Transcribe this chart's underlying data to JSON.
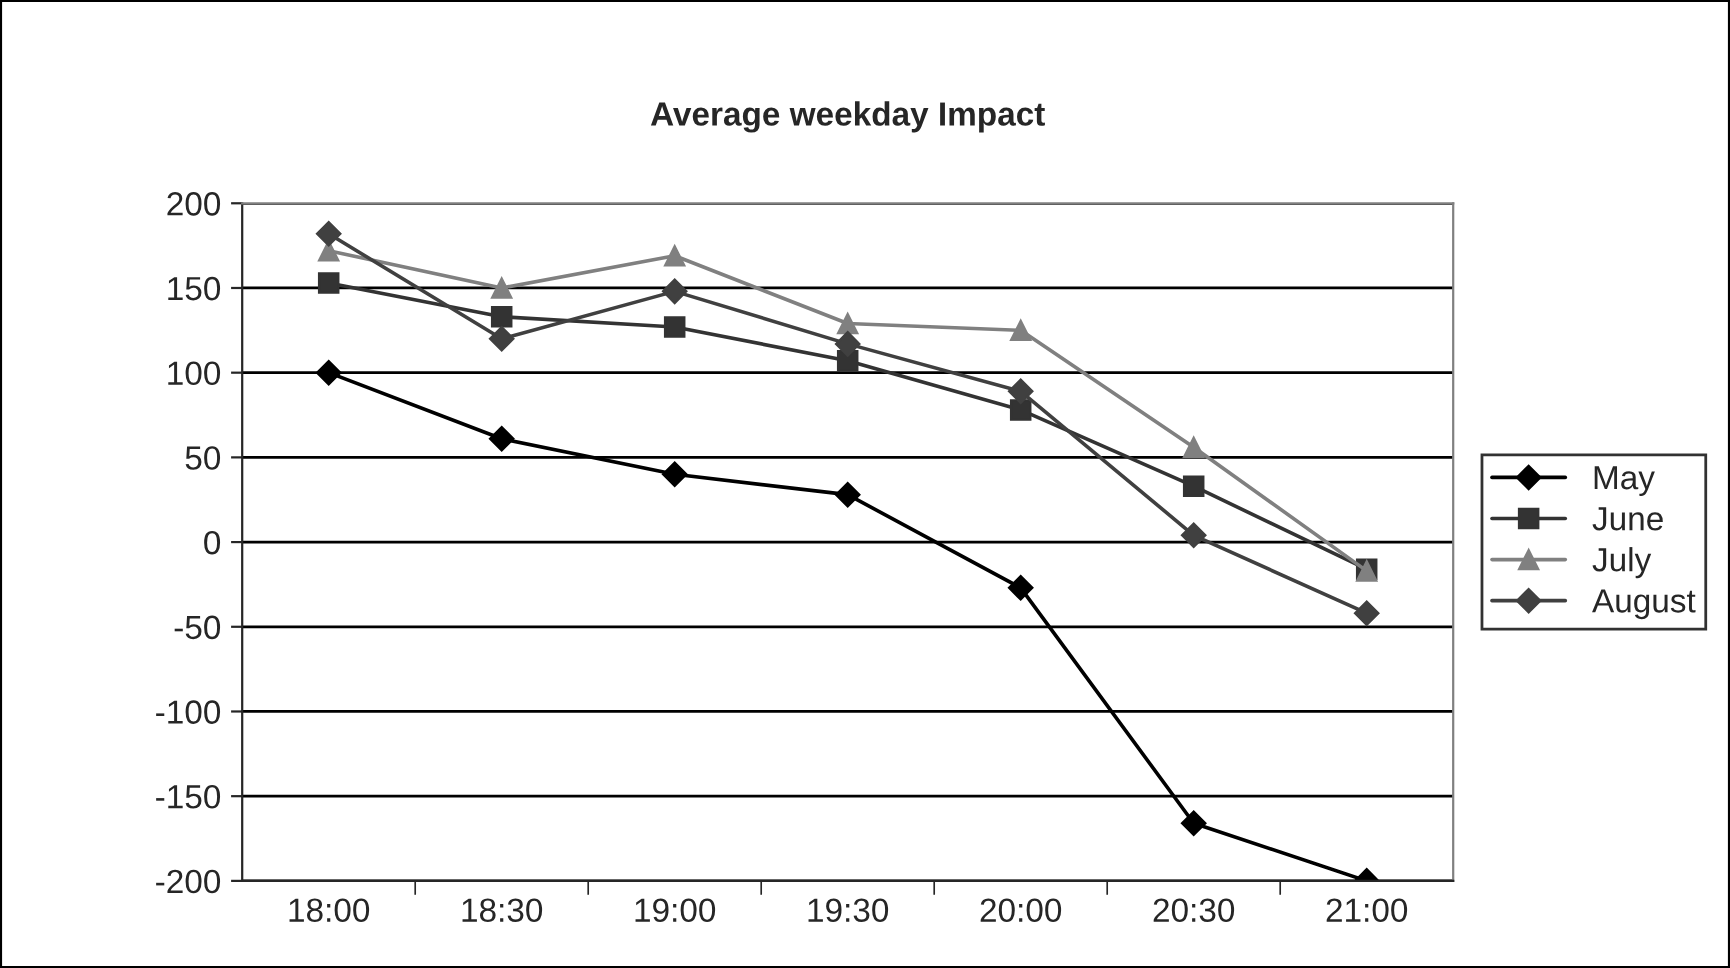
{
  "chart_data": {
    "type": "line",
    "title": "Average weekday Impact",
    "categories": [
      "18:00",
      "18:30",
      "19:00",
      "19:30",
      "20:00",
      "20:30",
      "21:00"
    ],
    "series": [
      {
        "name": "May",
        "color": "#000000",
        "marker": "diamond",
        "values": [
          100,
          61,
          40,
          28,
          -27,
          -166,
          -200
        ]
      },
      {
        "name": "June",
        "color": "#333333",
        "marker": "square",
        "values": [
          153,
          133,
          127,
          107,
          78,
          33,
          -16
        ]
      },
      {
        "name": "July",
        "color": "#808080",
        "marker": "triangle",
        "values": [
          172,
          150,
          169,
          129,
          125,
          56,
          -17
        ]
      },
      {
        "name": "August",
        "color": "#404040",
        "marker": "diamond",
        "values": [
          182,
          120,
          148,
          117,
          89,
          4,
          -42
        ]
      }
    ],
    "ylim": [
      -200,
      200
    ],
    "yticks": [
      -200,
      -150,
      -100,
      -50,
      0,
      50,
      100,
      150,
      200
    ],
    "grid": "y",
    "legend": "right",
    "line_style": "solid"
  }
}
